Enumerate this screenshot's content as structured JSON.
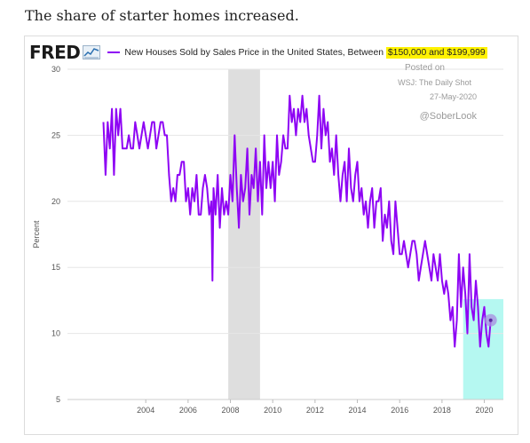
{
  "page": {
    "heading": "The share of starter homes increased."
  },
  "logo": {
    "text": "FRED"
  },
  "legend": {
    "label_prefix": "New Houses Sold by Sales Price in the United States, Between ",
    "label_highlight": "$150,000 and $199,999",
    "color": "#8e04f4"
  },
  "annotations": {
    "posted_on": "Posted on",
    "source": "WSJ: The Daily Shot",
    "date": "27-May-2020",
    "handle": "@SoberLook"
  },
  "colors": {
    "line": "#8e04f4",
    "recession": "#dedede",
    "highlight": "#8ef5e9",
    "marker": "#a98ee0",
    "grid": "#e6e6e6"
  },
  "chart_data": {
    "type": "line",
    "title": "",
    "xlabel": "",
    "ylabel": "Percent",
    "xlim": [
      2000.3,
      2020.9
    ],
    "ylim": [
      5,
      30
    ],
    "xticks": [
      2004,
      2006,
      2008,
      2010,
      2012,
      2014,
      2016,
      2018,
      2020
    ],
    "yticks": [
      5,
      10,
      15,
      20,
      25,
      30
    ],
    "grid": true,
    "recession_shading": [
      2007.9,
      2009.4
    ],
    "highlight_region": {
      "x": [
        2019.0,
        2020.9
      ],
      "y": [
        5,
        12.6
      ]
    },
    "last_point": {
      "x": 2020.3,
      "y": 11
    },
    "series": [
      {
        "name": "New Houses Sold by Sales Price in the United States, Between $150,000 and $199,999",
        "points": [
          [
            2002.0,
            26
          ],
          [
            2002.1,
            22
          ],
          [
            2002.2,
            26
          ],
          [
            2002.3,
            24
          ],
          [
            2002.4,
            27
          ],
          [
            2002.5,
            22
          ],
          [
            2002.6,
            27
          ],
          [
            2002.7,
            25
          ],
          [
            2002.8,
            27
          ],
          [
            2002.9,
            24
          ],
          [
            2003.0,
            24
          ],
          [
            2003.1,
            24
          ],
          [
            2003.2,
            25
          ],
          [
            2003.3,
            24
          ],
          [
            2003.4,
            24
          ],
          [
            2003.5,
            26
          ],
          [
            2003.6,
            25
          ],
          [
            2003.7,
            24
          ],
          [
            2003.8,
            25
          ],
          [
            2003.9,
            26
          ],
          [
            2004.0,
            25
          ],
          [
            2004.1,
            24
          ],
          [
            2004.2,
            25
          ],
          [
            2004.3,
            26
          ],
          [
            2004.4,
            26
          ],
          [
            2004.5,
            24
          ],
          [
            2004.6,
            25
          ],
          [
            2004.7,
            26
          ],
          [
            2004.8,
            26
          ],
          [
            2004.9,
            25
          ],
          [
            2005.0,
            25
          ],
          [
            2005.1,
            22
          ],
          [
            2005.2,
            20
          ],
          [
            2005.3,
            21
          ],
          [
            2005.4,
            20
          ],
          [
            2005.5,
            22
          ],
          [
            2005.6,
            22
          ],
          [
            2005.7,
            23
          ],
          [
            2005.8,
            23
          ],
          [
            2005.9,
            20
          ],
          [
            2006.0,
            21
          ],
          [
            2006.1,
            19
          ],
          [
            2006.2,
            21
          ],
          [
            2006.3,
            20
          ],
          [
            2006.4,
            22
          ],
          [
            2006.5,
            19
          ],
          [
            2006.6,
            19
          ],
          [
            2006.7,
            21
          ],
          [
            2006.8,
            22
          ],
          [
            2006.9,
            21
          ],
          [
            2007.0,
            19
          ],
          [
            2007.1,
            20
          ],
          [
            2007.15,
            14
          ],
          [
            2007.2,
            21
          ],
          [
            2007.3,
            19
          ],
          [
            2007.4,
            22
          ],
          [
            2007.5,
            18
          ],
          [
            2007.6,
            21
          ],
          [
            2007.7,
            19
          ],
          [
            2007.8,
            20
          ],
          [
            2007.9,
            19
          ],
          [
            2008.0,
            22
          ],
          [
            2008.1,
            20
          ],
          [
            2008.2,
            25
          ],
          [
            2008.3,
            21
          ],
          [
            2008.4,
            18
          ],
          [
            2008.5,
            22
          ],
          [
            2008.6,
            20
          ],
          [
            2008.7,
            21
          ],
          [
            2008.8,
            24
          ],
          [
            2008.9,
            19
          ],
          [
            2009.0,
            22
          ],
          [
            2009.1,
            21
          ],
          [
            2009.2,
            24
          ],
          [
            2009.3,
            20
          ],
          [
            2009.4,
            23
          ],
          [
            2009.5,
            19
          ],
          [
            2009.6,
            25
          ],
          [
            2009.7,
            21
          ],
          [
            2009.8,
            23
          ],
          [
            2009.9,
            21
          ],
          [
            2010.0,
            23
          ],
          [
            2010.1,
            20
          ],
          [
            2010.2,
            25
          ],
          [
            2010.3,
            22
          ],
          [
            2010.4,
            23
          ],
          [
            2010.5,
            25
          ],
          [
            2010.6,
            24
          ],
          [
            2010.7,
            24
          ],
          [
            2010.8,
            28
          ],
          [
            2010.9,
            26
          ],
          [
            2011.0,
            27
          ],
          [
            2011.1,
            25
          ],
          [
            2011.2,
            27
          ],
          [
            2011.3,
            26
          ],
          [
            2011.4,
            28
          ],
          [
            2011.5,
            26
          ],
          [
            2011.6,
            27
          ],
          [
            2011.7,
            25
          ],
          [
            2011.8,
            24
          ],
          [
            2011.9,
            23
          ],
          [
            2012.0,
            23
          ],
          [
            2012.1,
            25
          ],
          [
            2012.2,
            28
          ],
          [
            2012.3,
            24
          ],
          [
            2012.4,
            27
          ],
          [
            2012.5,
            25
          ],
          [
            2012.6,
            26
          ],
          [
            2012.7,
            23
          ],
          [
            2012.8,
            24
          ],
          [
            2012.9,
            22
          ],
          [
            2013.0,
            25
          ],
          [
            2013.1,
            22
          ],
          [
            2013.2,
            20
          ],
          [
            2013.3,
            22
          ],
          [
            2013.4,
            23
          ],
          [
            2013.5,
            20
          ],
          [
            2013.6,
            24
          ],
          [
            2013.7,
            21
          ],
          [
            2013.8,
            20
          ],
          [
            2013.9,
            22
          ],
          [
            2014.0,
            23
          ],
          [
            2014.1,
            20
          ],
          [
            2014.2,
            21
          ],
          [
            2014.3,
            19
          ],
          [
            2014.4,
            20
          ],
          [
            2014.5,
            18
          ],
          [
            2014.6,
            20
          ],
          [
            2014.7,
            21
          ],
          [
            2014.8,
            18
          ],
          [
            2014.9,
            20
          ],
          [
            2015.0,
            20
          ],
          [
            2015.1,
            21
          ],
          [
            2015.2,
            17
          ],
          [
            2015.3,
            19
          ],
          [
            2015.4,
            18
          ],
          [
            2015.5,
            20
          ],
          [
            2015.6,
            17
          ],
          [
            2015.7,
            16
          ],
          [
            2015.8,
            20
          ],
          [
            2015.9,
            18
          ],
          [
            2016.0,
            16
          ],
          [
            2016.1,
            16
          ],
          [
            2016.2,
            17
          ],
          [
            2016.3,
            16
          ],
          [
            2016.4,
            15
          ],
          [
            2016.5,
            16
          ],
          [
            2016.6,
            17
          ],
          [
            2016.7,
            17
          ],
          [
            2016.8,
            16
          ],
          [
            2016.9,
            14
          ],
          [
            2017.0,
            15
          ],
          [
            2017.1,
            16
          ],
          [
            2017.2,
            17
          ],
          [
            2017.3,
            16
          ],
          [
            2017.4,
            15
          ],
          [
            2017.5,
            14
          ],
          [
            2017.6,
            16
          ],
          [
            2017.7,
            15
          ],
          [
            2017.8,
            14
          ],
          [
            2017.9,
            16
          ],
          [
            2018.0,
            14
          ],
          [
            2018.1,
            13
          ],
          [
            2018.2,
            14
          ],
          [
            2018.3,
            13
          ],
          [
            2018.4,
            11
          ],
          [
            2018.5,
            12
          ],
          [
            2018.6,
            9
          ],
          [
            2018.7,
            11
          ],
          [
            2018.8,
            16
          ],
          [
            2018.9,
            12
          ],
          [
            2019.0,
            15
          ],
          [
            2019.1,
            13
          ],
          [
            2019.2,
            10
          ],
          [
            2019.3,
            16
          ],
          [
            2019.4,
            12
          ],
          [
            2019.5,
            11
          ],
          [
            2019.6,
            14
          ],
          [
            2019.7,
            12
          ],
          [
            2019.8,
            9
          ],
          [
            2019.9,
            11
          ],
          [
            2020.0,
            12
          ],
          [
            2020.1,
            10
          ],
          [
            2020.2,
            9
          ],
          [
            2020.3,
            11
          ]
        ]
      }
    ]
  }
}
